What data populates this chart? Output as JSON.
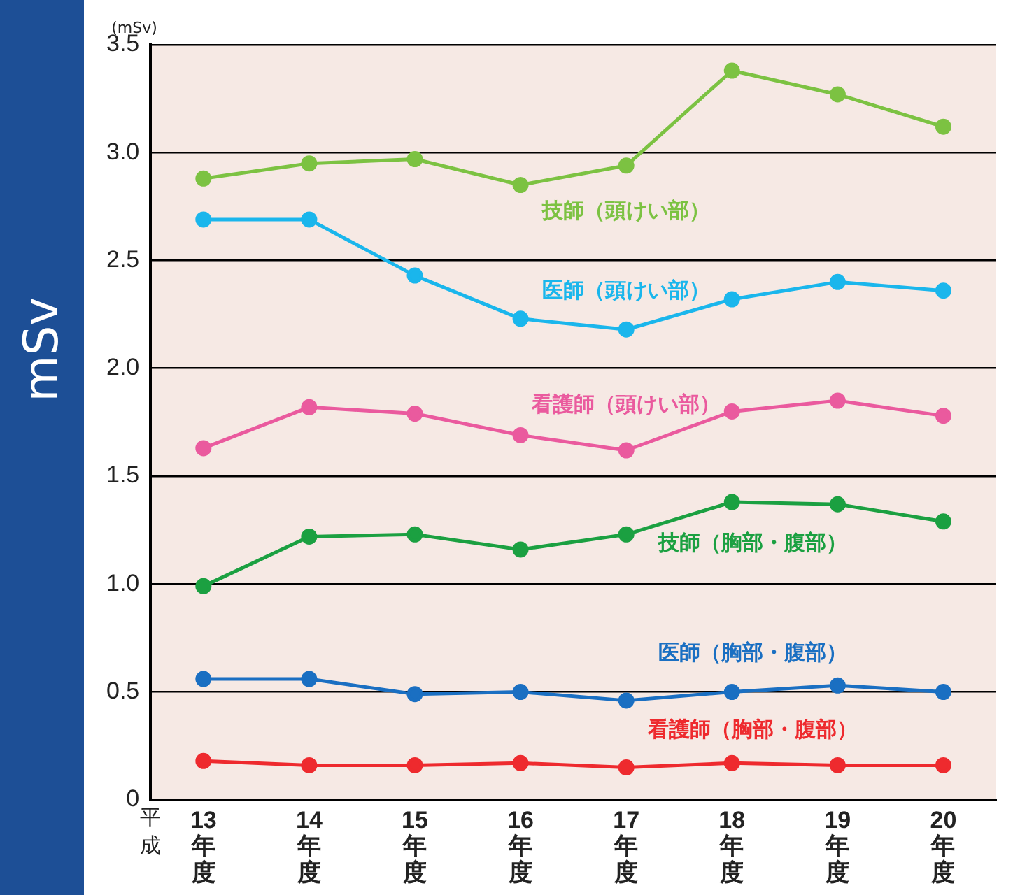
{
  "chart_data": {
    "type": "line",
    "ylabel": "mSv",
    "annotations": [
      "(mSv)",
      "平成"
    ],
    "categories": [
      "13年度",
      "14年度",
      "15年度",
      "16年度",
      "17年度",
      "18年度",
      "19年度",
      "20年度"
    ],
    "ylim": [
      0,
      3.5
    ],
    "yticks": [
      0,
      0.5,
      {
        "value": 1,
        "label": "1.0"
      },
      1.5,
      {
        "value": 2,
        "label": "2.0"
      },
      2.5,
      {
        "value": 3,
        "label": "3.0"
      },
      3.5
    ],
    "grid": "y",
    "legend": false,
    "marker": "circle",
    "line_style": "solid",
    "series": [
      {
        "name": "技師（頭けい部）",
        "color": "#7cc242",
        "values": [
          2.88,
          2.95,
          2.97,
          2.85,
          2.94,
          3.38,
          3.27,
          3.12
        ]
      },
      {
        "name": "医師（頭けい部）",
        "color": "#1ab6ec",
        "values": [
          2.69,
          2.69,
          2.43,
          2.23,
          2.18,
          2.32,
          2.4,
          2.36
        ]
      },
      {
        "name": "看護師（頭けい部）",
        "color": "#ea5a9e",
        "values": [
          1.63,
          1.82,
          1.79,
          1.69,
          1.62,
          1.8,
          1.85,
          1.78
        ]
      },
      {
        "name": "技師（胸部・腹部）",
        "color": "#1ba041",
        "values": [
          0.99,
          1.22,
          1.23,
          1.16,
          1.23,
          1.38,
          1.37,
          1.29
        ]
      },
      {
        "name": "医師（胸部・腹部）",
        "color": "#1a6fc2",
        "values": [
          0.56,
          0.56,
          0.49,
          0.5,
          0.46,
          0.5,
          0.53,
          0.5
        ]
      },
      {
        "name": "看護師（胸部・腹部）",
        "color": "#ee2a2e",
        "values": [
          0.18,
          0.16,
          0.16,
          0.17,
          0.15,
          0.17,
          0.16,
          0.16
        ]
      }
    ]
  }
}
